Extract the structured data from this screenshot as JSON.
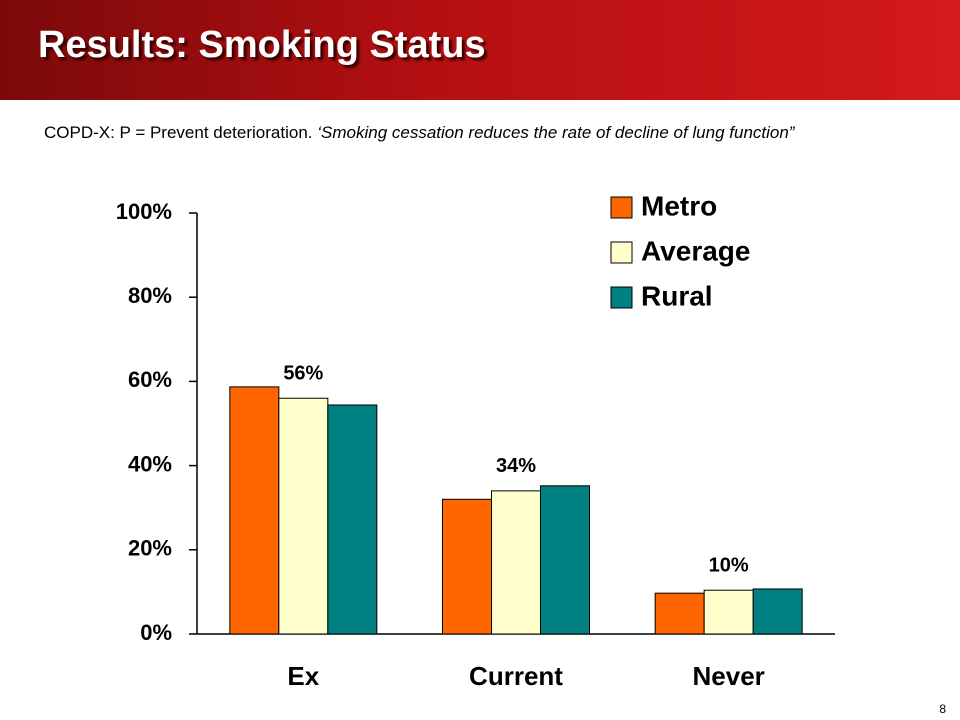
{
  "header": {
    "title": "Results: Smoking Status"
  },
  "subtitle": {
    "lead": "COPD-X: P = Prevent deterioration.",
    "quote": "‘Smoking cessation reduces the rate of decline of lung function”"
  },
  "page_number": "8",
  "chart_data": {
    "type": "bar",
    "categories": [
      "Ex",
      "Current",
      "Never"
    ],
    "series": [
      {
        "name": "Metro",
        "color": "#ff6600",
        "values": [
          58.7,
          32,
          9.7
        ]
      },
      {
        "name": "Average",
        "color": "#ffffcc",
        "values": [
          56,
          34,
          10.4
        ],
        "value_labels": [
          "56%",
          "34%",
          "10%"
        ]
      },
      {
        "name": "Rural",
        "color": "#008080",
        "values": [
          54.4,
          35.2,
          10.7
        ]
      }
    ],
    "ylim": [
      0,
      100
    ],
    "yticks": [
      {
        "value": 0,
        "label": "0%"
      },
      {
        "value": 20,
        "label": "20%"
      },
      {
        "value": 40,
        "label": "40%"
      },
      {
        "value": 60,
        "label": "60%"
      },
      {
        "value": 80,
        "label": "80%"
      },
      {
        "value": 100,
        "label": "100%"
      }
    ],
    "legend": "top-right"
  }
}
